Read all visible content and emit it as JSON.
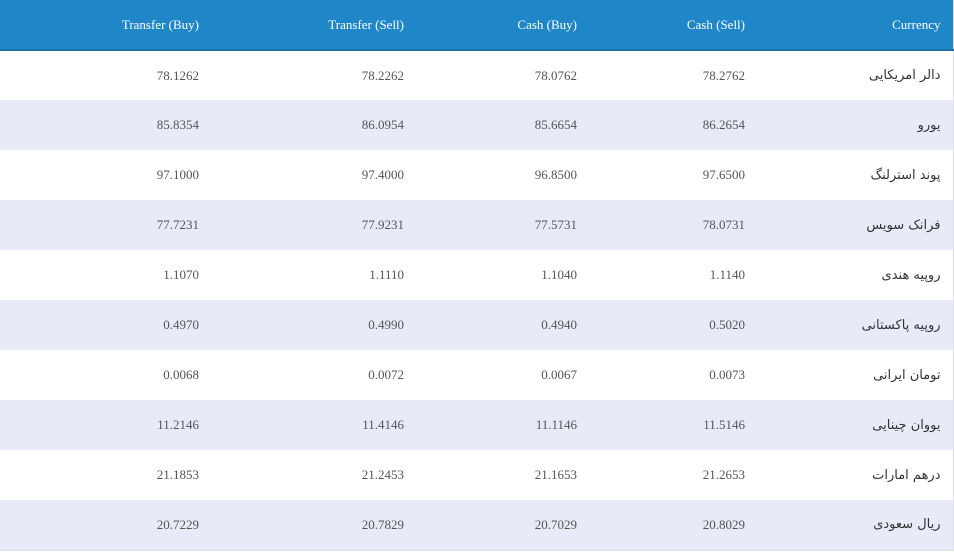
{
  "table": {
    "header": [
      "Transfer (Buy)",
      "Transfer (Sell)",
      "Cash (Buy)",
      "Cash (Sell)",
      "Currency"
    ],
    "rows": [
      [
        "78.1262",
        "78.2262",
        "78.0762",
        "78.2762",
        "دالر امریکایی"
      ],
      [
        "85.8354",
        "86.0954",
        "85.6654",
        "86.2654",
        "یورو"
      ],
      [
        "97.1000",
        "97.4000",
        "96.8500",
        "97.6500",
        "پوند استرلنگ"
      ],
      [
        "77.7231",
        "77.9231",
        "77.5731",
        "78.0731",
        "فرانک سویس"
      ],
      [
        "1.1070",
        "1.1110",
        "1.1040",
        "1.1140",
        "روپیه هندی"
      ],
      [
        "0.4970",
        "0.4990",
        "0.4940",
        "0.5020",
        "روپیه پاکستانی"
      ],
      [
        "0.0068",
        "0.0072",
        "0.0067",
        "0.0073",
        "تومان ایرانی"
      ],
      [
        "11.2146",
        "11.4146",
        "11.1146",
        "11.5146",
        "یووان چینایی"
      ],
      [
        "21.1853",
        "21.2453",
        "21.1653",
        "21.2653",
        "درهم امارات"
      ],
      [
        "20.7229",
        "20.7829",
        "20.7029",
        "20.8029",
        "ریال سعودی"
      ]
    ]
  }
}
